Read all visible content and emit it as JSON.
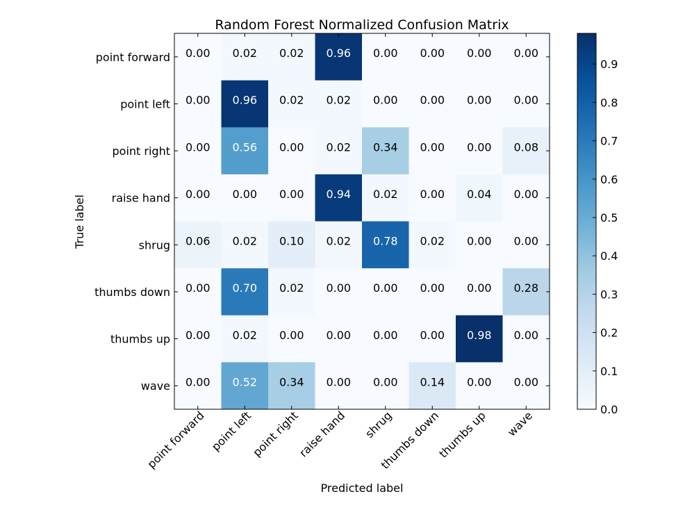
{
  "chart_data": {
    "type": "heatmap",
    "title": "Random Forest Normalized Confusion Matrix",
    "xlabel": "Predicted label",
    "ylabel": "True label",
    "row_labels": [
      "point forward",
      "point left",
      "point right",
      "raise hand",
      "shrug",
      "thumbs down",
      "thumbs up",
      "wave"
    ],
    "col_labels": [
      "point forward",
      "point left",
      "point right",
      "raise hand",
      "shrug",
      "thumbs down",
      "thumbs up",
      "wave"
    ],
    "values": [
      [
        0.0,
        0.02,
        0.02,
        0.96,
        0.0,
        0.0,
        0.0,
        0.0
      ],
      [
        0.0,
        0.96,
        0.02,
        0.02,
        0.0,
        0.0,
        0.0,
        0.0
      ],
      [
        0.0,
        0.56,
        0.0,
        0.02,
        0.34,
        0.0,
        0.0,
        0.08
      ],
      [
        0.0,
        0.0,
        0.0,
        0.94,
        0.02,
        0.0,
        0.04,
        0.0
      ],
      [
        0.06,
        0.02,
        0.1,
        0.02,
        0.78,
        0.02,
        0.0,
        0.0
      ],
      [
        0.0,
        0.7,
        0.02,
        0.0,
        0.0,
        0.0,
        0.0,
        0.28
      ],
      [
        0.0,
        0.02,
        0.0,
        0.0,
        0.0,
        0.0,
        0.98,
        0.0
      ],
      [
        0.0,
        0.52,
        0.34,
        0.0,
        0.0,
        0.14,
        0.0,
        0.0
      ]
    ],
    "value_format_decimals": 2,
    "colormap": "Blues",
    "colormap_stops": [
      "#f7fbff",
      "#deebf7",
      "#c6dbef",
      "#9ecae1",
      "#6baed6",
      "#4292c6",
      "#2171b5",
      "#08519c",
      "#08306b"
    ],
    "color_range": [
      0.0,
      0.98
    ],
    "text_color_dark": "#000000",
    "text_color_light": "#ffffff",
    "colorbar": {
      "ticks": [
        0.0,
        0.1,
        0.2,
        0.3,
        0.4,
        0.5,
        0.6,
        0.7,
        0.8,
        0.9
      ],
      "tick_labels": [
        "0.0",
        "0.1",
        "0.2",
        "0.3",
        "0.4",
        "0.5",
        "0.6",
        "0.7",
        "0.8",
        "0.9"
      ]
    },
    "grid": false,
    "legend": "colorbar-right"
  }
}
